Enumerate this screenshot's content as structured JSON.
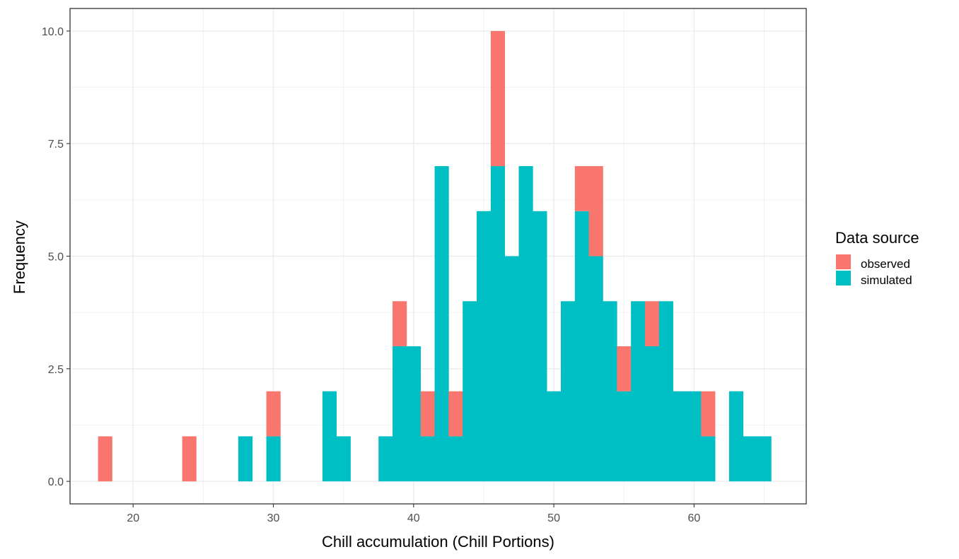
{
  "chart_data": {
    "type": "bar",
    "subtype": "stacked-histogram",
    "xlabel": "Chill accumulation (Chill Portions)",
    "ylabel": "Frequency",
    "xlim": [
      15.5,
      68
    ],
    "ylim": [
      -0.5,
      10.5
    ],
    "x_ticks": [
      20,
      30,
      40,
      50,
      60
    ],
    "x_tick_labels": [
      "20",
      "30",
      "40",
      "50",
      "60"
    ],
    "y_ticks": [
      0,
      2.5,
      5,
      7.5,
      10
    ],
    "y_tick_labels": [
      "0.0",
      "2.5",
      "5.0",
      "7.5",
      "10.0"
    ],
    "grid": true,
    "legend": {
      "title": "Data source",
      "position": "right"
    },
    "bin_width": 1,
    "bin_centers": [
      18,
      19,
      20,
      21,
      22,
      23,
      24,
      25,
      26,
      27,
      28,
      29,
      30,
      31,
      32,
      33,
      34,
      35,
      36,
      37,
      38,
      39,
      40,
      41,
      42,
      43,
      44,
      45,
      46,
      47,
      48,
      49,
      50,
      51,
      52,
      53,
      54,
      55,
      56,
      57,
      58,
      59,
      60,
      61,
      62,
      63,
      64,
      65
    ],
    "series": [
      {
        "name": "simulated",
        "color": "#00BFC4",
        "values": [
          0,
          0,
          0,
          0,
          0,
          0,
          0,
          0,
          0,
          0,
          1,
          0,
          1,
          0,
          0,
          0,
          2,
          1,
          0,
          0,
          1,
          3,
          3,
          1,
          7,
          1,
          4,
          6,
          7,
          5,
          7,
          6,
          2,
          4,
          6,
          5,
          4,
          2,
          4,
          3,
          4,
          2,
          2,
          1,
          0,
          2,
          1,
          1
        ]
      },
      {
        "name": "observed",
        "color": "#F8766D",
        "values": [
          1,
          0,
          0,
          0,
          0,
          0,
          1,
          0,
          0,
          0,
          0,
          0,
          1,
          0,
          0,
          0,
          0,
          0,
          0,
          0,
          0,
          1,
          0,
          1,
          0,
          1,
          0,
          0,
          3,
          0,
          0,
          0,
          0,
          0,
          1,
          2,
          0,
          1,
          0,
          1,
          0,
          0,
          0,
          1,
          0,
          0,
          0,
          0
        ]
      }
    ]
  }
}
